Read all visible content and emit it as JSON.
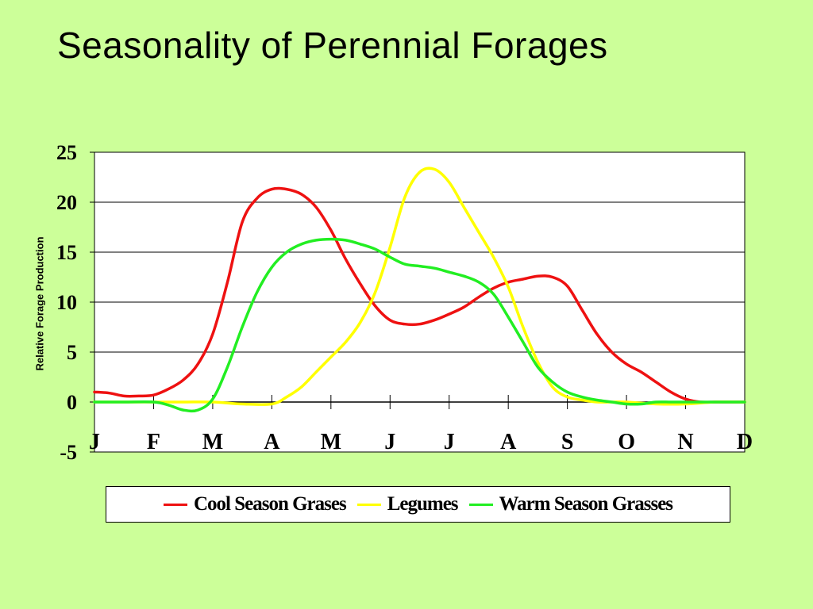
{
  "slide": {
    "title": "Seasonality of Perennial Forages"
  },
  "chart_data": {
    "type": "line",
    "title": "",
    "xlabel": "",
    "ylabel": "Relative Forage Production",
    "ylim": [
      -5,
      25
    ],
    "yticks": [
      25,
      20,
      15,
      10,
      5,
      0,
      -5
    ],
    "month_labels": [
      "J",
      "F",
      "M",
      "A",
      "M",
      "J",
      "J",
      "A",
      "S",
      "O",
      "N",
      "D"
    ],
    "xlim": [
      0,
      11
    ],
    "grid": true,
    "legend_position": "bottom",
    "series": [
      {
        "name": "Cool Season Grases",
        "color": "#ee1111",
        "x": [
          0,
          0.25,
          0.5,
          0.75,
          1,
          1.25,
          1.5,
          1.75,
          2,
          2.25,
          2.5,
          2.75,
          3,
          3.25,
          3.5,
          3.75,
          4,
          4.25,
          4.5,
          4.75,
          5,
          5.25,
          5.5,
          5.75,
          6,
          6.25,
          6.5,
          6.75,
          7,
          7.25,
          7.5,
          7.75,
          8,
          8.25,
          8.5,
          8.75,
          9,
          9.25,
          9.5,
          9.75,
          10,
          10.25,
          10.5,
          10.75,
          11
        ],
        "y": [
          1.0,
          0.9,
          0.6,
          0.6,
          0.7,
          1.3,
          2.2,
          3.8,
          6.8,
          12.0,
          18.0,
          20.4,
          21.3,
          21.3,
          20.8,
          19.5,
          17.2,
          14.3,
          11.8,
          9.6,
          8.2,
          7.8,
          7.8,
          8.2,
          8.8,
          9.5,
          10.5,
          11.4,
          12.0,
          12.3,
          12.6,
          12.5,
          11.6,
          9.2,
          6.8,
          5.0,
          3.8,
          3.0,
          2.0,
          1.0,
          0.3,
          0.0,
          0.0,
          0.0,
          0.0
        ]
      },
      {
        "name": "Legumes",
        "color": "#ffff00",
        "x": [
          0,
          0.5,
          1,
          1.5,
          2,
          2.5,
          3,
          3.25,
          3.5,
          3.75,
          4,
          4.25,
          4.5,
          4.75,
          5,
          5.25,
          5.5,
          5.75,
          6,
          6.25,
          6.5,
          6.75,
          7,
          7.25,
          7.5,
          7.75,
          8,
          8.25,
          8.5,
          8.75,
          9,
          9.5,
          10,
          10.5,
          11
        ],
        "y": [
          0.0,
          0.0,
          0.0,
          0.0,
          0.0,
          -0.2,
          -0.2,
          0.5,
          1.5,
          3.0,
          4.5,
          6.0,
          8.0,
          11.0,
          15.5,
          20.5,
          23.0,
          23.3,
          22.0,
          19.5,
          17.0,
          14.5,
          11.5,
          7.5,
          4.0,
          1.5,
          0.5,
          0.2,
          0.0,
          0.0,
          0.0,
          -0.2,
          -0.2,
          0.0,
          0.0
        ]
      },
      {
        "name": "Warm Season Grasses",
        "color": "#22ee22",
        "x": [
          0,
          0.5,
          1,
          1.25,
          1.5,
          1.75,
          2,
          2.25,
          2.5,
          2.75,
          3,
          3.25,
          3.5,
          3.75,
          4,
          4.25,
          4.5,
          4.75,
          5,
          5.25,
          5.5,
          5.75,
          6,
          6.25,
          6.5,
          6.75,
          7,
          7.25,
          7.5,
          7.75,
          8,
          8.25,
          8.5,
          8.75,
          9,
          9.25,
          9.5,
          9.75,
          10,
          10.25,
          10.5,
          10.75,
          11
        ],
        "y": [
          0.0,
          0.0,
          0.0,
          -0.3,
          -0.8,
          -0.8,
          0.3,
          3.5,
          7.5,
          11.0,
          13.5,
          15.0,
          15.8,
          16.2,
          16.3,
          16.2,
          15.8,
          15.3,
          14.5,
          13.8,
          13.6,
          13.4,
          13.0,
          12.6,
          12.0,
          10.8,
          8.5,
          6.0,
          3.5,
          2.0,
          1.0,
          0.5,
          0.2,
          0.0,
          -0.2,
          -0.2,
          0.0,
          0.0,
          0.0,
          0.0,
          0.0,
          0.0,
          0.0
        ]
      }
    ]
  }
}
